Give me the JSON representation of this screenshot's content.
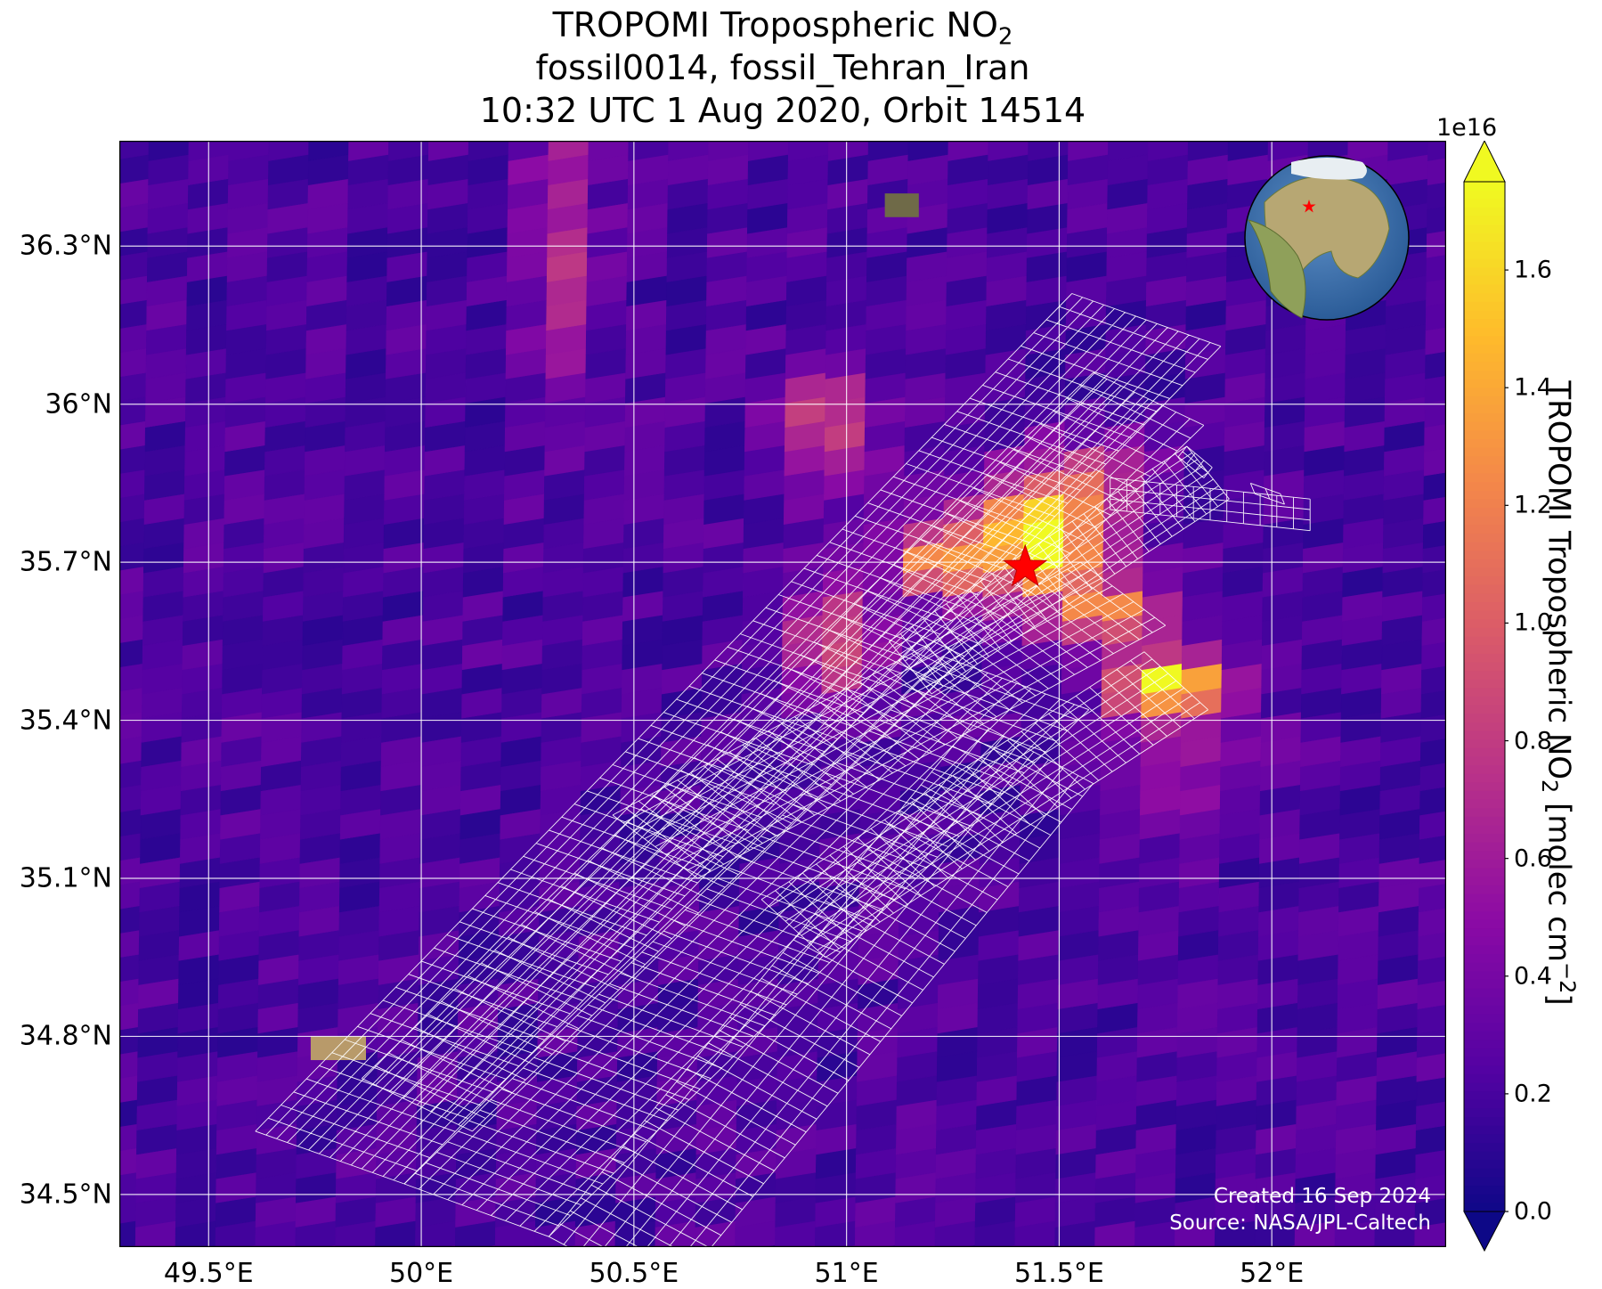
{
  "title": {
    "line1_main": "TROPOMI Tropospheric NO",
    "line1_sub": "2",
    "line2": "fossil0014, fossil_Tehran_Iran",
    "line3": "10:32 UTC 1 Aug 2020, Orbit 14514"
  },
  "map": {
    "lon_range": [
      49.29,
      52.41
    ],
    "lat_range": [
      34.4,
      36.5
    ],
    "x_ticks": [
      {
        "value": 49.5,
        "label": "49.5°E"
      },
      {
        "value": 50.0,
        "label": "50°E"
      },
      {
        "value": 50.5,
        "label": "50.5°E"
      },
      {
        "value": 51.0,
        "label": "51°E"
      },
      {
        "value": 51.5,
        "label": "51.5°E"
      },
      {
        "value": 52.0,
        "label": "52°E"
      }
    ],
    "y_ticks": [
      {
        "value": 34.5,
        "label": "34.5°N"
      },
      {
        "value": 34.8,
        "label": "34.8°N"
      },
      {
        "value": 35.1,
        "label": "35.1°N"
      },
      {
        "value": 35.4,
        "label": "35.4°N"
      },
      {
        "value": 35.7,
        "label": "35.7°N"
      },
      {
        "value": 36.0,
        "label": "36°N"
      },
      {
        "value": 36.3,
        "label": "36.3°N"
      }
    ],
    "gridlines": true,
    "target": {
      "lon": 51.42,
      "lat": 35.69,
      "marker": "red-star"
    },
    "inset": "globe-with-red-star",
    "background_colormap": "plasma",
    "background_value_range": [
      0.1,
      0.35
    ],
    "enhancements": [
      {
        "lon": 51.43,
        "lat": 35.74,
        "peak": 1.65,
        "sigma_lon": 0.1,
        "sigma_lat": 0.07
      },
      {
        "lon": 51.75,
        "lat": 35.46,
        "peak": 1.6,
        "sigma_lon": 0.1,
        "sigma_lat": 0.04
      },
      {
        "lon": 51.2,
        "lat": 35.7,
        "peak": 1.05,
        "sigma_lon": 0.08,
        "sigma_lat": 0.05
      },
      {
        "lon": 51.6,
        "lat": 35.6,
        "peak": 0.95,
        "sigma_lon": 0.1,
        "sigma_lat": 0.05
      },
      {
        "lon": 50.93,
        "lat": 35.95,
        "peak": 0.7,
        "sigma_lon": 0.08,
        "sigma_lat": 0.08
      },
      {
        "lon": 50.95,
        "lat": 35.55,
        "peak": 0.7,
        "sigma_lon": 0.08,
        "sigma_lat": 0.08
      },
      {
        "lon": 50.3,
        "lat": 36.3,
        "peak": 0.5,
        "sigma_lon": 0.06,
        "sigma_lat": 0.2
      },
      {
        "lon": 51.55,
        "lat": 35.85,
        "peak": 0.5,
        "sigma_lon": 0.1,
        "sigma_lat": 0.06
      },
      {
        "lon": 51.8,
        "lat": 35.3,
        "peak": 0.3,
        "sigma_lon": 0.12,
        "sigma_lat": 0.08
      }
    ]
  },
  "colorbar": {
    "exponent_label": "1e16",
    "min": 0.0,
    "max": 1.75,
    "colormap": "plasma",
    "extend": "both",
    "ticks": [
      {
        "value": 0.0,
        "label": "0.0"
      },
      {
        "value": 0.2,
        "label": "0.2"
      },
      {
        "value": 0.4,
        "label": "0.4"
      },
      {
        "value": 0.6,
        "label": "0.6"
      },
      {
        "value": 0.8,
        "label": "0.8"
      },
      {
        "value": 1.0,
        "label": "1.0"
      },
      {
        "value": 1.2,
        "label": "1.2"
      },
      {
        "value": 1.4,
        "label": "1.4"
      },
      {
        "value": 1.6,
        "label": "1.6"
      }
    ],
    "label_main": "TROPOMI Tropospheric NO",
    "label_sub": "2",
    "label_units_prefix": " [molec cm",
    "label_units_sup": "−2",
    "label_units_suffix": "]"
  },
  "credit": {
    "line1": "Created 16 Sep 2024",
    "line2": "Source: NASA/JPL-Caltech"
  },
  "colors": {
    "grid": "#ffffff",
    "mesh": "#ffffff",
    "star": "#ff0000",
    "frame": "#000000"
  }
}
